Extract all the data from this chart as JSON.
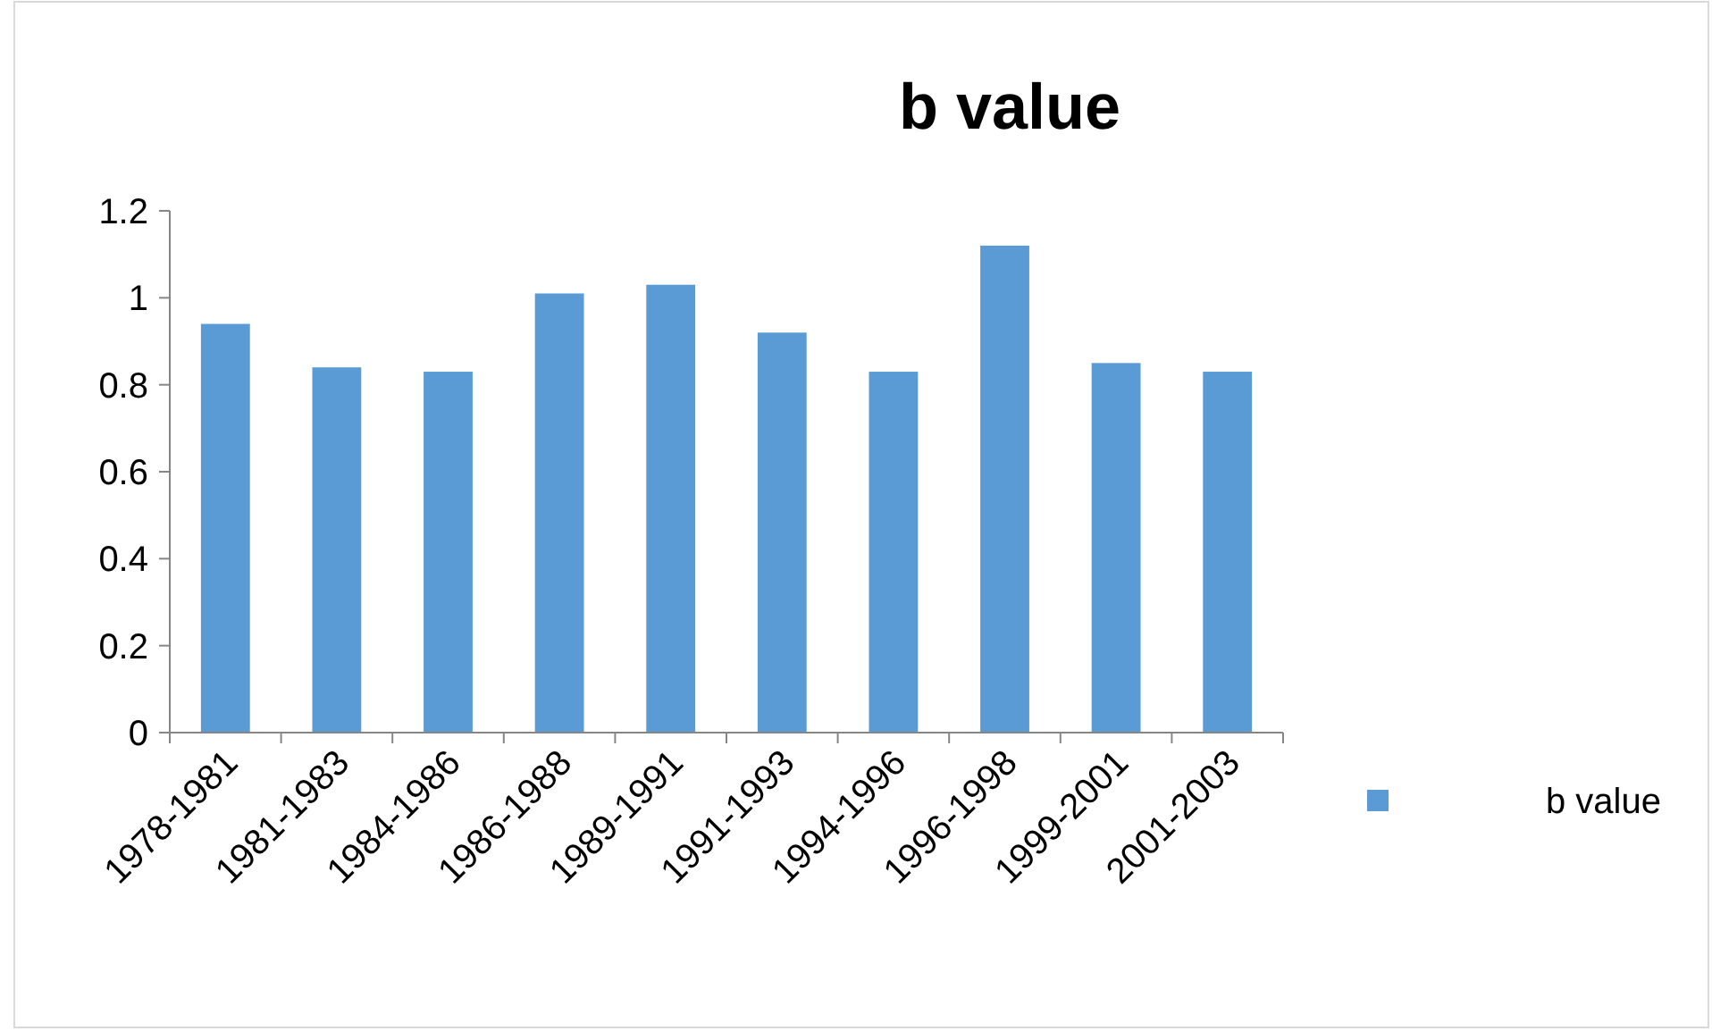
{
  "chart_data": {
    "type": "bar",
    "title": "b value",
    "categories": [
      "1978-1981",
      "1981-1983",
      "1984-1986",
      "1986-1988",
      "1989-1991",
      "1991-1993",
      "1994-1996",
      "1996-1998",
      "1999-2001",
      "2001-2003"
    ],
    "series": [
      {
        "name": "b value",
        "color": "#5b9bd5",
        "values": [
          0.94,
          0.84,
          0.83,
          1.01,
          1.03,
          0.92,
          0.83,
          1.12,
          0.85,
          0.83
        ]
      }
    ],
    "ylim": [
      0,
      1.2
    ],
    "yticks": [
      0,
      0.2,
      0.4,
      0.6,
      0.8,
      1,
      1.2
    ],
    "grid": false,
    "legend": "right"
  }
}
